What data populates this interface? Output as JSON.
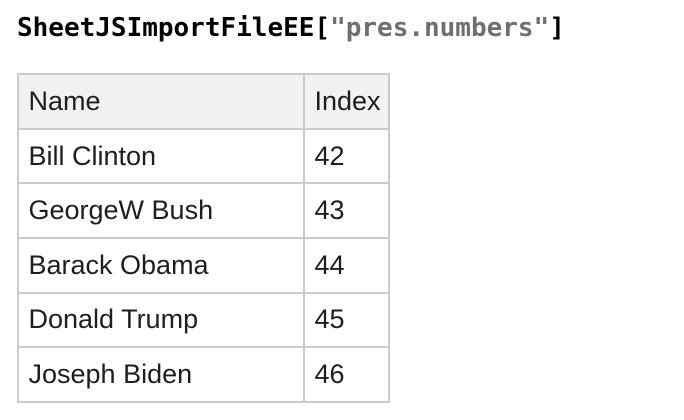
{
  "heading": {
    "object_name": "SheetJSImportFileEE",
    "bracket_open": "[",
    "key_string": "\"pres.numbers\"",
    "bracket_close": "]",
    "string_color": "#6f6f6f"
  },
  "table": {
    "columns": {
      "name": "Name",
      "index": "Index"
    },
    "rows": [
      {
        "name": "Bill Clinton",
        "index": "42"
      },
      {
        "name": "GeorgeW Bush",
        "index": "43"
      },
      {
        "name": "Barack Obama",
        "index": "44"
      },
      {
        "name": "Donald Trump",
        "index": "45"
      },
      {
        "name": "Joseph Biden",
        "index": "46"
      }
    ],
    "header_bg": "#f1f1f1",
    "border_color": "#cbcbcb"
  }
}
